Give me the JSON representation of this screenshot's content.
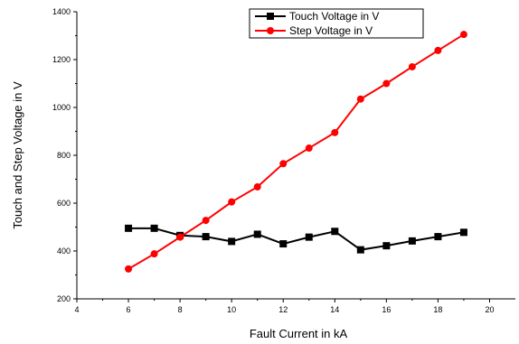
{
  "chart_data": {
    "type": "line",
    "title": "",
    "xlabel": "Fault Current in kA",
    "ylabel": "Touch and Step Voltage in V",
    "xlim": [
      4,
      21
    ],
    "ylim": [
      200,
      1400
    ],
    "xticks": [
      4,
      6,
      8,
      10,
      12,
      14,
      16,
      18,
      20
    ],
    "yticks": [
      200,
      400,
      600,
      800,
      1000,
      1200,
      1400
    ],
    "grid": false,
    "legend_position": "top-right",
    "series": [
      {
        "name": "Touch Voltage in V",
        "color": "#000000",
        "marker": "square",
        "x": [
          6,
          7,
          8,
          9,
          10,
          11,
          12,
          13,
          14,
          15,
          16,
          17,
          18,
          19
        ],
        "y": [
          495,
          495,
          465,
          460,
          440,
          470,
          430,
          458,
          482,
          405,
          422,
          442,
          460,
          478
        ]
      },
      {
        "name": "Step Voltage in V",
        "color": "#ff0000",
        "marker": "circle",
        "x": [
          6,
          7,
          8,
          9,
          10,
          11,
          12,
          13,
          14,
          15,
          16,
          17,
          18,
          19
        ],
        "y": [
          325,
          388,
          458,
          528,
          605,
          668,
          765,
          830,
          895,
          1035,
          1100,
          1170,
          1238,
          1305
        ]
      }
    ]
  }
}
